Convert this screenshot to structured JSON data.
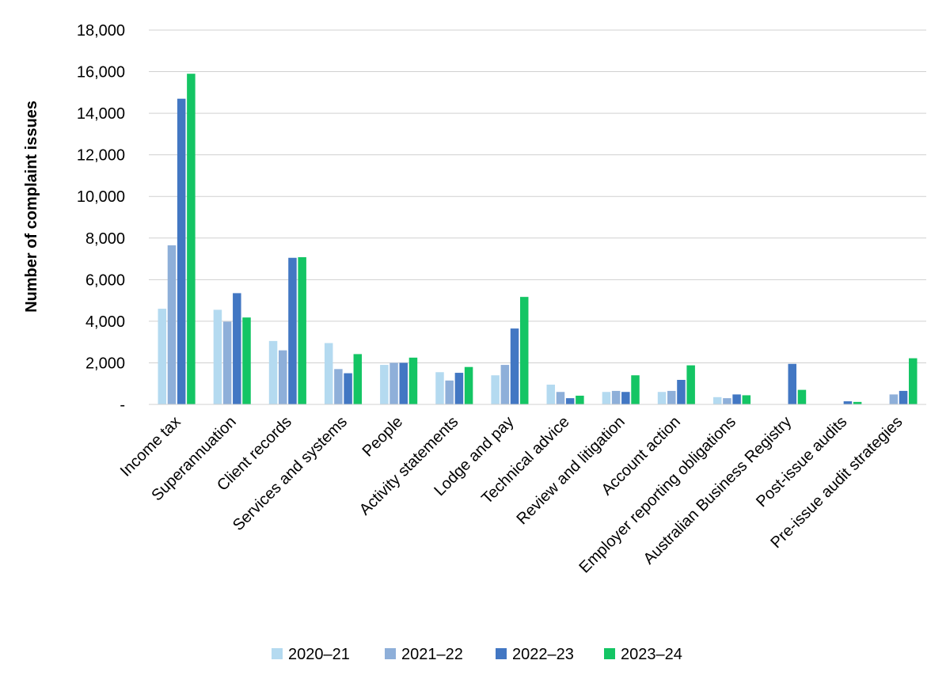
{
  "chart_data": {
    "type": "bar",
    "title": "",
    "xlabel": "",
    "ylabel": "Number of complaint issues",
    "ylim": [
      0,
      18000
    ],
    "yticks": [
      0,
      2000,
      4000,
      6000,
      8000,
      10000,
      12000,
      14000,
      16000,
      18000
    ],
    "ytick_labels": [
      "-",
      "2,000",
      "4,000",
      "6,000",
      "8,000",
      "10,000",
      "12,000",
      "14,000",
      "16,000",
      "18,000"
    ],
    "grid": true,
    "legend_position": "bottom",
    "categories": [
      "Income tax",
      "Superannuation",
      "Client records",
      "Services and systems",
      "People",
      "Activity statements",
      "Lodge and pay",
      "Technical advice",
      "Review and litigation",
      "Account action",
      "Employer reporting obligations",
      "Australian Business Registry",
      "Post-issue audits",
      "Pre-issue audit strategies"
    ],
    "series": [
      {
        "name": "2020–21",
        "color": "#b4daf0",
        "values": [
          4600,
          4550,
          3050,
          2950,
          1900,
          1550,
          1400,
          950,
          600,
          600,
          350,
          0,
          0,
          0
        ]
      },
      {
        "name": "2021–22",
        "color": "#8eafd9",
        "values": [
          7650,
          3980,
          2600,
          1700,
          2000,
          1150,
          1900,
          600,
          650,
          650,
          300,
          0,
          0,
          480
        ]
      },
      {
        "name": "2022–23",
        "color": "#4277c3",
        "values": [
          14700,
          5350,
          7050,
          1500,
          2000,
          1520,
          3650,
          300,
          600,
          1180,
          480,
          1950,
          150,
          650
        ]
      },
      {
        "name": "2023–24",
        "color": "#14c564",
        "values": [
          15900,
          4180,
          7080,
          2420,
          2250,
          1800,
          5170,
          420,
          1400,
          1880,
          440,
          700,
          120,
          2220
        ]
      }
    ]
  }
}
